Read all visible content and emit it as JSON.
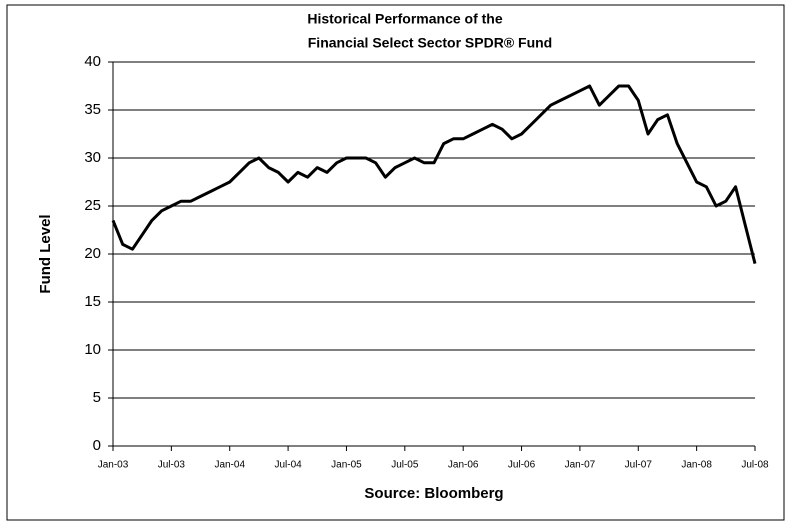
{
  "chart_data": {
    "type": "line",
    "title": [
      "Historical Performance of the",
      "Financial Select Sector SPDR® Fund"
    ],
    "xlabel": "Source: Bloomberg",
    "ylabel": "Fund Level",
    "x": [
      "2003-01",
      "2003-02",
      "2003-03",
      "2003-04",
      "2003-05",
      "2003-06",
      "2003-07",
      "2003-08",
      "2003-09",
      "2003-10",
      "2003-11",
      "2003-12",
      "2004-01",
      "2004-02",
      "2004-03",
      "2004-04",
      "2004-05",
      "2004-06",
      "2004-07",
      "2004-08",
      "2004-09",
      "2004-10",
      "2004-11",
      "2004-12",
      "2005-01",
      "2005-02",
      "2005-03",
      "2005-04",
      "2005-05",
      "2005-06",
      "2005-07",
      "2005-08",
      "2005-09",
      "2005-10",
      "2005-11",
      "2005-12",
      "2006-01",
      "2006-02",
      "2006-03",
      "2006-04",
      "2006-05",
      "2006-06",
      "2006-07",
      "2006-08",
      "2006-09",
      "2006-10",
      "2006-11",
      "2006-12",
      "2007-01",
      "2007-02",
      "2007-03",
      "2007-04",
      "2007-05",
      "2007-06",
      "2007-07",
      "2007-08",
      "2007-09",
      "2007-10",
      "2007-11",
      "2007-12",
      "2008-01",
      "2008-02",
      "2008-03",
      "2008-04",
      "2008-05",
      "2008-06",
      "2008-07"
    ],
    "series": [
      {
        "name": "Fund Level",
        "color": "#000000",
        "values": [
          23.5,
          21,
          20.5,
          22,
          23.5,
          24.5,
          25,
          25.5,
          25.5,
          26,
          26.5,
          27,
          27.5,
          28.5,
          29.5,
          30,
          29,
          28.5,
          27.5,
          28.5,
          28,
          29,
          28.5,
          29.5,
          30,
          30,
          30,
          29.5,
          28,
          29,
          29.5,
          30,
          29.5,
          29.5,
          31.5,
          32,
          32,
          32.5,
          33,
          33.5,
          33,
          32,
          32.5,
          33.5,
          34.5,
          35.5,
          36,
          36.5,
          37,
          37.5,
          35.5,
          36.5,
          37.5,
          37.5,
          36,
          32.5,
          34,
          34.5,
          31.5,
          29.5,
          27.5,
          27,
          25,
          25.5,
          27,
          23,
          19
        ]
      }
    ],
    "xlim": [
      "2003-01",
      "2008-07"
    ],
    "xticks": [
      {
        "value": "2003-01",
        "label": "Jan-03"
      },
      {
        "value": "2003-07",
        "label": "Jul-03"
      },
      {
        "value": "2004-01",
        "label": "Jan-04"
      },
      {
        "value": "2004-07",
        "label": "Jul-04"
      },
      {
        "value": "2005-01",
        "label": "Jan-05"
      },
      {
        "value": "2005-07",
        "label": "Jul-05"
      },
      {
        "value": "2006-01",
        "label": "Jan-06"
      },
      {
        "value": "2006-07",
        "label": "Jul-06"
      },
      {
        "value": "2007-01",
        "label": "Jan-07"
      },
      {
        "value": "2007-07",
        "label": "Jul-07"
      },
      {
        "value": "2008-01",
        "label": "Jan-08"
      },
      {
        "value": "2008-07",
        "label": "Jul-08"
      }
    ],
    "ylim": [
      0,
      40
    ],
    "yticks": [
      0,
      5,
      10,
      15,
      20,
      25,
      30,
      35,
      40
    ],
    "grid": true
  }
}
